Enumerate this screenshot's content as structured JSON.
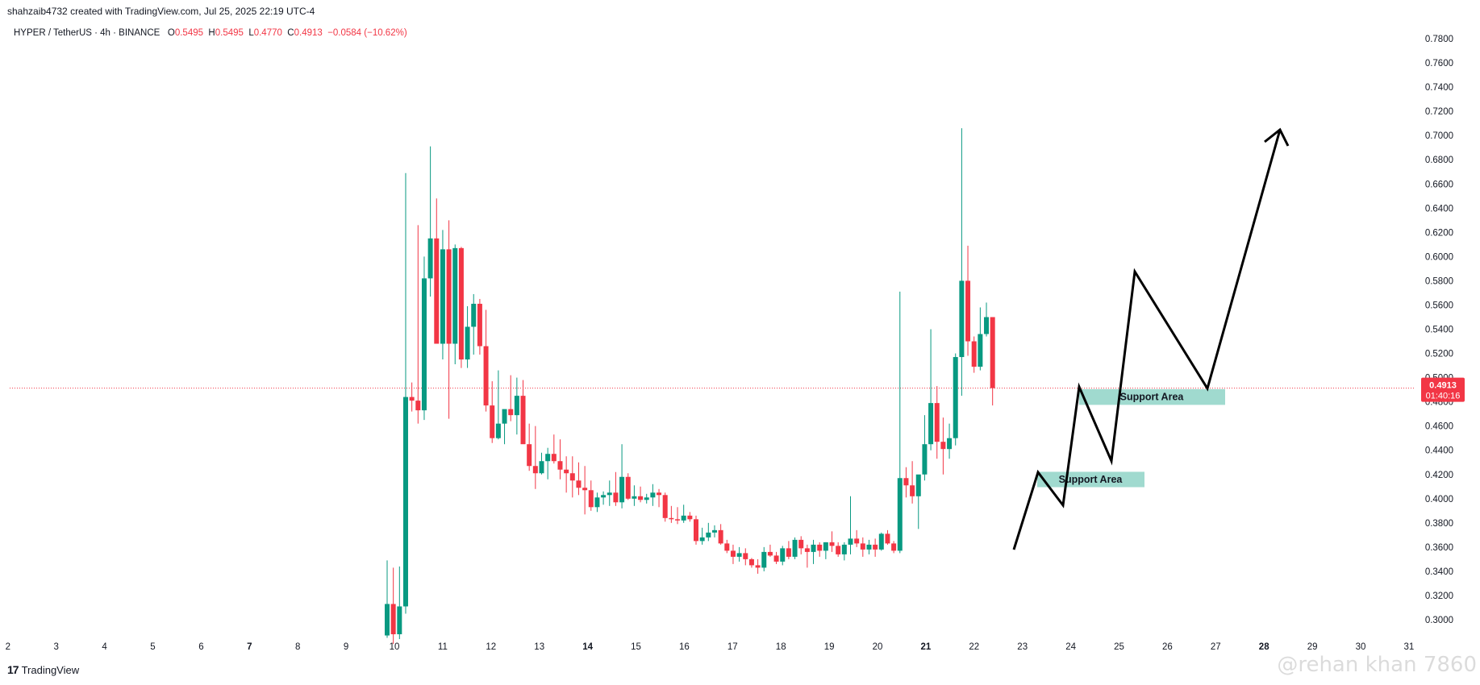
{
  "header": {
    "created_by": "shahzaib4732 created with TradingView.com, Jul 25, 2025 22:19 UTC-4"
  },
  "legend": {
    "symbol": "HYPER / TetherUS · 4h · BINANCE",
    "o_label": "O",
    "o_value": "0.5495",
    "h_label": "H",
    "h_value": "0.5495",
    "l_label": "L",
    "l_value": "0.4770",
    "c_label": "C",
    "c_value": "0.4913",
    "change": "−0.0584 (−10.62%)"
  },
  "footer": {
    "brand": "TradingView"
  },
  "watermark": "@rehan khan 7860",
  "colors": {
    "up": "#089981",
    "down": "#f23645",
    "zone": "#8fd3c7",
    "price_line": "#f23645",
    "axis_text": "#131722",
    "drawing": "#000000"
  },
  "chart_data": {
    "type": "candlestick",
    "symbol": "HYPER / TetherUS",
    "timeframe": "4h",
    "exchange": "BINANCE",
    "ylim": [
      0.285,
      0.79
    ],
    "y_ticks": [
      "0.3000",
      "0.3200",
      "0.3400",
      "0.3600",
      "0.3800",
      "0.4000",
      "0.4200",
      "0.4400",
      "0.4600",
      "0.4800",
      "0.5000",
      "0.5200",
      "0.5400",
      "0.5600",
      "0.5800",
      "0.6000",
      "0.6200",
      "0.6400",
      "0.6600",
      "0.6800",
      "0.7000",
      "0.7200",
      "0.7400",
      "0.7600",
      "0.7800"
    ],
    "x_ticks": [
      {
        "day": 2,
        "label": "2",
        "bold": false
      },
      {
        "day": 3,
        "label": "3",
        "bold": false
      },
      {
        "day": 4,
        "label": "4",
        "bold": false
      },
      {
        "day": 5,
        "label": "5",
        "bold": false
      },
      {
        "day": 6,
        "label": "6",
        "bold": false
      },
      {
        "day": 7,
        "label": "7",
        "bold": true
      },
      {
        "day": 8,
        "label": "8",
        "bold": false
      },
      {
        "day": 9,
        "label": "9",
        "bold": false
      },
      {
        "day": 10,
        "label": "10",
        "bold": false
      },
      {
        "day": 11,
        "label": "11",
        "bold": false
      },
      {
        "day": 12,
        "label": "12",
        "bold": false
      },
      {
        "day": 13,
        "label": "13",
        "bold": false
      },
      {
        "day": 14,
        "label": "14",
        "bold": true
      },
      {
        "day": 15,
        "label": "15",
        "bold": false
      },
      {
        "day": 16,
        "label": "16",
        "bold": false
      },
      {
        "day": 17,
        "label": "17",
        "bold": false
      },
      {
        "day": 18,
        "label": "18",
        "bold": false
      },
      {
        "day": 19,
        "label": "19",
        "bold": false
      },
      {
        "day": 20,
        "label": "20",
        "bold": false
      },
      {
        "day": 21,
        "label": "21",
        "bold": true
      },
      {
        "day": 22,
        "label": "22",
        "bold": false
      },
      {
        "day": 23,
        "label": "23",
        "bold": false
      },
      {
        "day": 24,
        "label": "24",
        "bold": false
      },
      {
        "day": 25,
        "label": "25",
        "bold": false
      },
      {
        "day": 26,
        "label": "26",
        "bold": false
      },
      {
        "day": 27,
        "label": "27",
        "bold": false
      },
      {
        "day": 28,
        "label": "28",
        "bold": true
      },
      {
        "day": 29,
        "label": "29",
        "bold": false
      },
      {
        "day": 30,
        "label": "30",
        "bold": false
      },
      {
        "day": 31,
        "label": "31",
        "bold": false
      }
    ],
    "candles_ohlc": [
      [
        0.287,
        0.349,
        0.285,
        0.313
      ],
      [
        0.313,
        0.343,
        0.28,
        0.288
      ],
      [
        0.288,
        0.344,
        0.284,
        0.311
      ],
      [
        0.311,
        0.669,
        0.305,
        0.484
      ],
      [
        0.484,
        0.496,
        0.472,
        0.481
      ],
      [
        0.481,
        0.626,
        0.462,
        0.473
      ],
      [
        0.473,
        0.6,
        0.465,
        0.582
      ],
      [
        0.582,
        0.691,
        0.567,
        0.615
      ],
      [
        0.615,
        0.648,
        0.534,
        0.528
      ],
      [
        0.528,
        0.622,
        0.515,
        0.606
      ],
      [
        0.606,
        0.63,
        0.466,
        0.528
      ],
      [
        0.528,
        0.61,
        0.511,
        0.607
      ],
      [
        0.607,
        0.608,
        0.508,
        0.515
      ],
      [
        0.515,
        0.559,
        0.508,
        0.542
      ],
      [
        0.542,
        0.569,
        0.519,
        0.561
      ],
      [
        0.561,
        0.565,
        0.519,
        0.526
      ],
      [
        0.526,
        0.556,
        0.472,
        0.477
      ],
      [
        0.477,
        0.497,
        0.446,
        0.45
      ],
      [
        0.45,
        0.506,
        0.449,
        0.462
      ],
      [
        0.462,
        0.473,
        0.445,
        0.474
      ],
      [
        0.474,
        0.502,
        0.464,
        0.469
      ],
      [
        0.469,
        0.5,
        0.453,
        0.485
      ],
      [
        0.485,
        0.498,
        0.448,
        0.445
      ],
      [
        0.445,
        0.462,
        0.423,
        0.427
      ],
      [
        0.427,
        0.46,
        0.408,
        0.421
      ],
      [
        0.421,
        0.438,
        0.42,
        0.431
      ],
      [
        0.431,
        0.442,
        0.416,
        0.437
      ],
      [
        0.437,
        0.453,
        0.429,
        0.431
      ],
      [
        0.431,
        0.449,
        0.416,
        0.424
      ],
      [
        0.424,
        0.435,
        0.405,
        0.421
      ],
      [
        0.421,
        0.435,
        0.401,
        0.415
      ],
      [
        0.415,
        0.43,
        0.403,
        0.409
      ],
      [
        0.409,
        0.427,
        0.387,
        0.407
      ],
      [
        0.407,
        0.415,
        0.39,
        0.393
      ],
      [
        0.393,
        0.405,
        0.389,
        0.401
      ],
      [
        0.401,
        0.406,
        0.395,
        0.403
      ],
      [
        0.403,
        0.415,
        0.394,
        0.405
      ],
      [
        0.405,
        0.422,
        0.394,
        0.397
      ],
      [
        0.397,
        0.445,
        0.392,
        0.418
      ],
      [
        0.418,
        0.421,
        0.399,
        0.4
      ],
      [
        0.4,
        0.411,
        0.394,
        0.402
      ],
      [
        0.402,
        0.41,
        0.397,
        0.399
      ],
      [
        0.399,
        0.404,
        0.396,
        0.401
      ],
      [
        0.401,
        0.412,
        0.394,
        0.405
      ],
      [
        0.405,
        0.408,
        0.393,
        0.403
      ],
      [
        0.403,
        0.405,
        0.381,
        0.384
      ],
      [
        0.384,
        0.394,
        0.38,
        0.383
      ],
      [
        0.383,
        0.393,
        0.379,
        0.382
      ],
      [
        0.382,
        0.395,
        0.38,
        0.386
      ],
      [
        0.386,
        0.389,
        0.381,
        0.383
      ],
      [
        0.383,
        0.386,
        0.362,
        0.365
      ],
      [
        0.365,
        0.376,
        0.362,
        0.368
      ],
      [
        0.368,
        0.38,
        0.365,
        0.372
      ],
      [
        0.372,
        0.378,
        0.368,
        0.374
      ],
      [
        0.374,
        0.379,
        0.362,
        0.363
      ],
      [
        0.363,
        0.366,
        0.355,
        0.357
      ],
      [
        0.357,
        0.362,
        0.346,
        0.352
      ],
      [
        0.352,
        0.36,
        0.348,
        0.355
      ],
      [
        0.355,
        0.359,
        0.345,
        0.35
      ],
      [
        0.35,
        0.351,
        0.343,
        0.345
      ],
      [
        0.345,
        0.35,
        0.338,
        0.343
      ],
      [
        0.343,
        0.36,
        0.34,
        0.356
      ],
      [
        0.356,
        0.362,
        0.352,
        0.353
      ],
      [
        0.353,
        0.356,
        0.346,
        0.348
      ],
      [
        0.348,
        0.361,
        0.345,
        0.359
      ],
      [
        0.359,
        0.365,
        0.35,
        0.352
      ],
      [
        0.352,
        0.368,
        0.35,
        0.366
      ],
      [
        0.366,
        0.369,
        0.354,
        0.359
      ],
      [
        0.359,
        0.362,
        0.343,
        0.356
      ],
      [
        0.356,
        0.366,
        0.346,
        0.362
      ],
      [
        0.362,
        0.364,
        0.352,
        0.357
      ],
      [
        0.357,
        0.364,
        0.35,
        0.364
      ],
      [
        0.364,
        0.373,
        0.356,
        0.361
      ],
      [
        0.361,
        0.364,
        0.352,
        0.354
      ],
      [
        0.354,
        0.364,
        0.349,
        0.362
      ],
      [
        0.362,
        0.402,
        0.354,
        0.367
      ],
      [
        0.367,
        0.374,
        0.36,
        0.363
      ],
      [
        0.363,
        0.368,
        0.352,
        0.358
      ],
      [
        0.358,
        0.366,
        0.354,
        0.362
      ],
      [
        0.362,
        0.367,
        0.352,
        0.358
      ],
      [
        0.358,
        0.372,
        0.357,
        0.371
      ],
      [
        0.371,
        0.374,
        0.362,
        0.363
      ],
      [
        0.363,
        0.365,
        0.355,
        0.357
      ],
      [
        0.357,
        0.571,
        0.355,
        0.417
      ],
      [
        0.417,
        0.426,
        0.401,
        0.411
      ],
      [
        0.411,
        0.431,
        0.396,
        0.402
      ],
      [
        0.402,
        0.417,
        0.375,
        0.42
      ],
      [
        0.42,
        0.469,
        0.415,
        0.445
      ],
      [
        0.445,
        0.54,
        0.44,
        0.479
      ],
      [
        0.479,
        0.493,
        0.433,
        0.447
      ],
      [
        0.447,
        0.467,
        0.42,
        0.441
      ],
      [
        0.441,
        0.462,
        0.433,
        0.45
      ],
      [
        0.45,
        0.52,
        0.444,
        0.517
      ],
      [
        0.517,
        0.706,
        0.485,
        0.58
      ],
      [
        0.58,
        0.609,
        0.518,
        0.53
      ],
      [
        0.53,
        0.534,
        0.504,
        0.509
      ],
      [
        0.509,
        0.558,
        0.506,
        0.536
      ],
      [
        0.536,
        0.562,
        0.534,
        0.55
      ],
      [
        0.55,
        0.5495,
        0.477,
        0.4913
      ]
    ],
    "last_price": "0.4913",
    "countdown": "01:40:16",
    "annotations": [
      {
        "type": "rectangle",
        "label": "Support Area"
      },
      {
        "type": "rectangle",
        "label": "Support Area"
      },
      {
        "type": "polyline-arrow",
        "label": ""
      }
    ]
  }
}
